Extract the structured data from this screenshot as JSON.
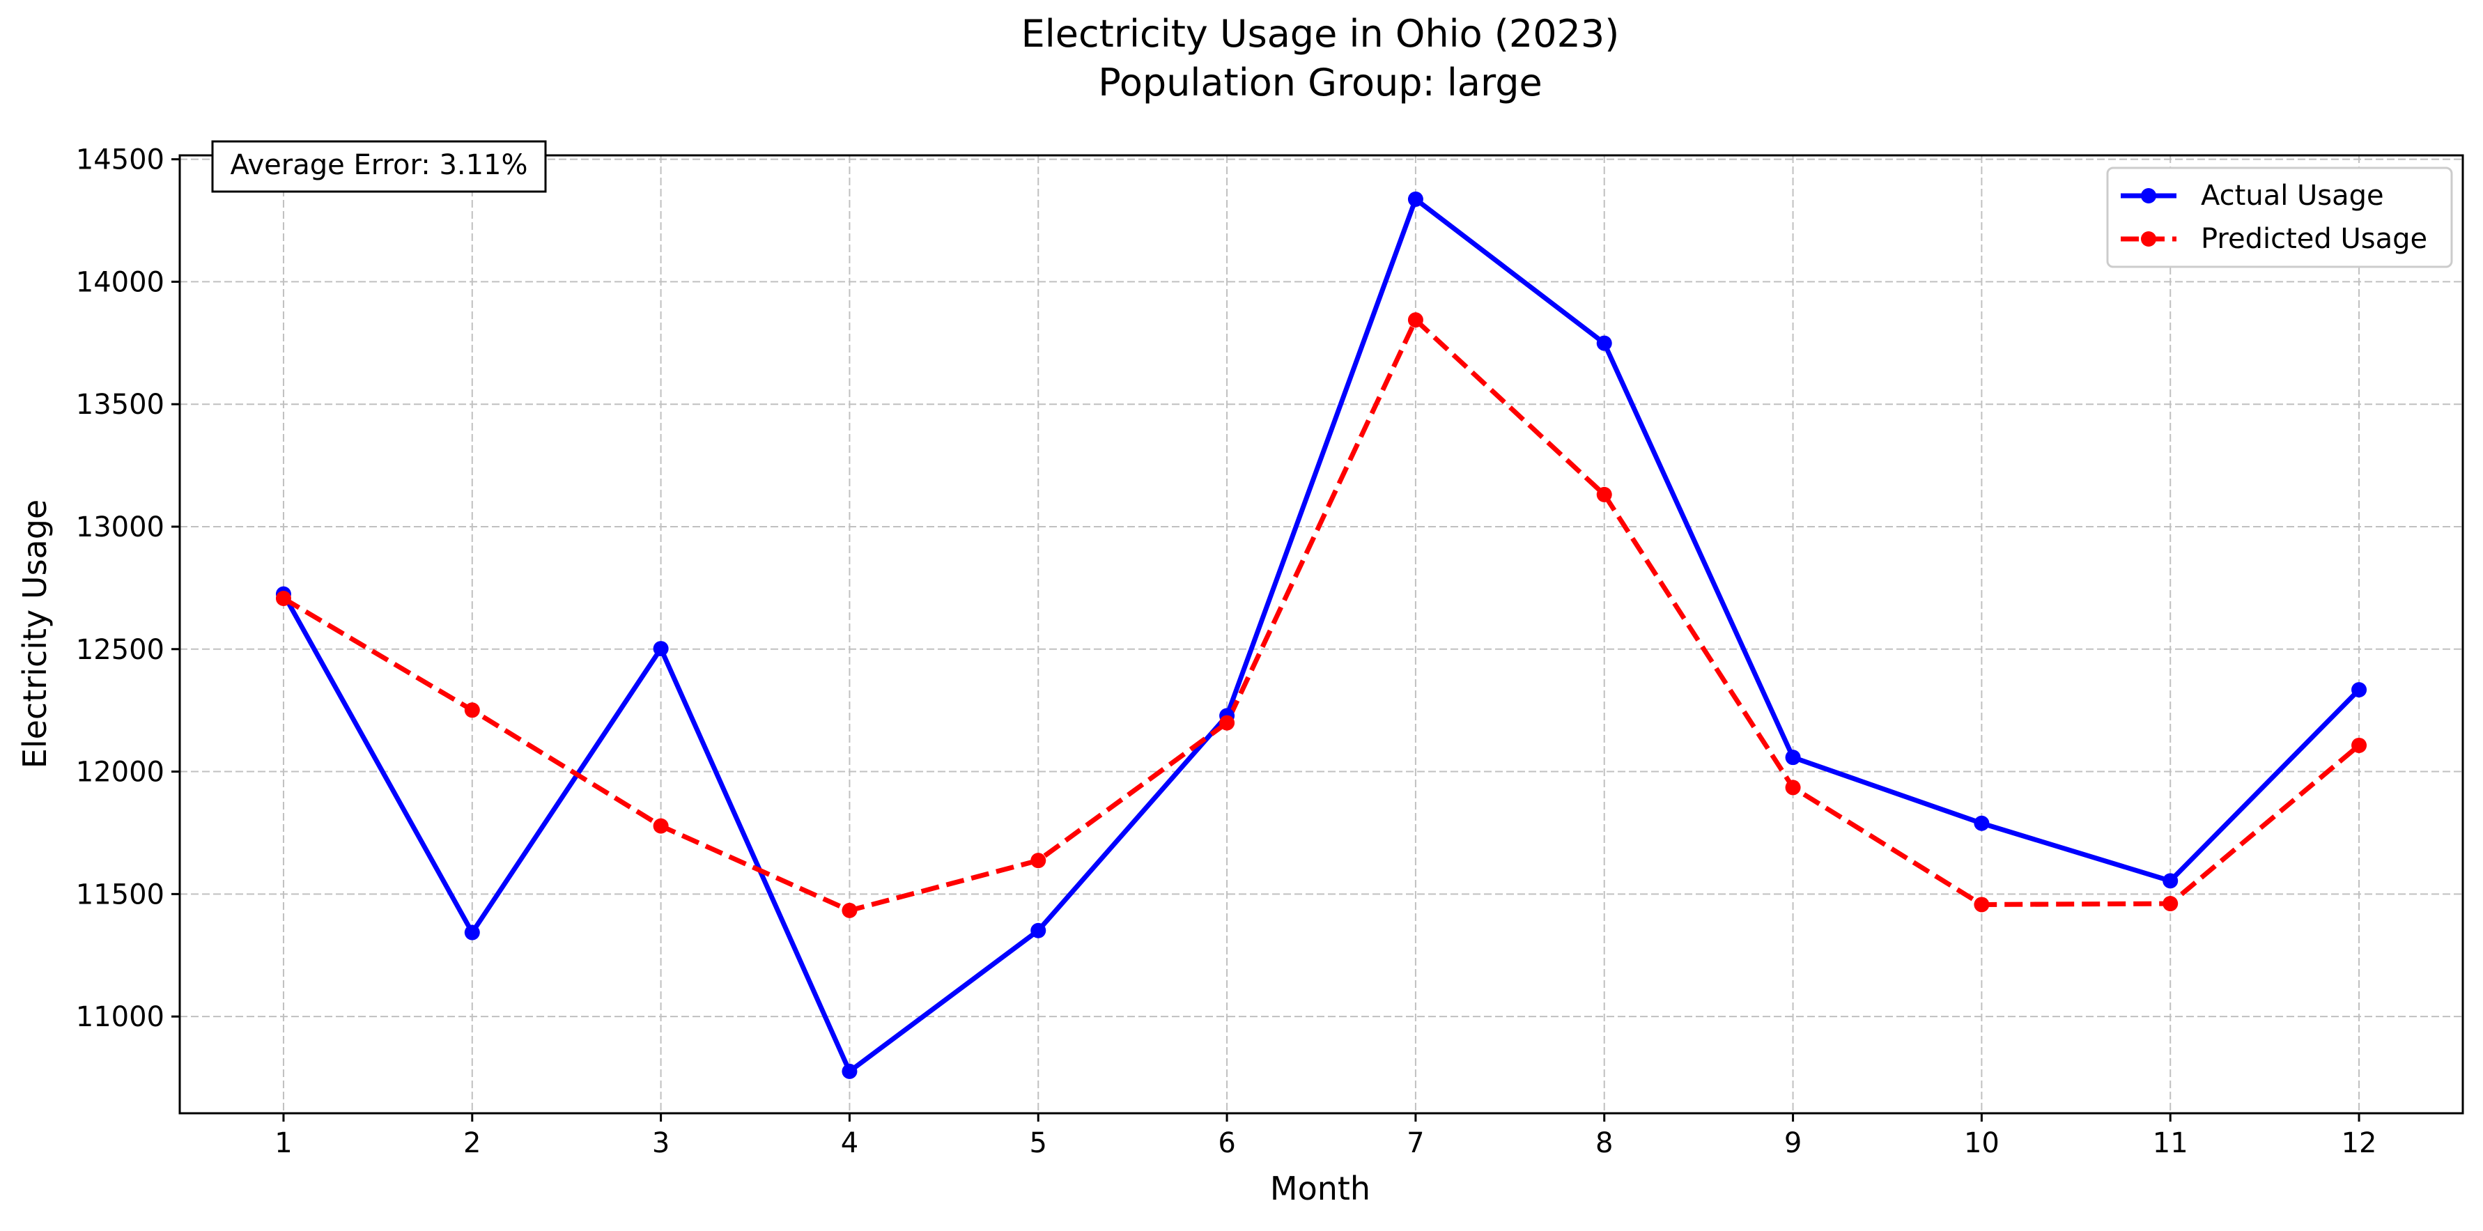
{
  "chart_data": {
    "type": "line",
    "title": "Electricity Usage in Ohio (2023)",
    "subtitle": "Population Group: large",
    "xlabel": "Month",
    "ylabel": "Electricity Usage",
    "x": [
      1,
      2,
      3,
      4,
      5,
      6,
      7,
      8,
      9,
      10,
      11,
      12
    ],
    "xlim": [
      0.45,
      12.55
    ],
    "ylim": [
      10605,
      14516
    ],
    "yticks": [
      11000,
      11500,
      12000,
      12500,
      13000,
      13500,
      14000,
      14500
    ],
    "grid": true,
    "legend_position": "top-right",
    "annotation": "Average Error: 3.11%",
    "series": [
      {
        "name": "Actual Usage",
        "color": "#0000ff",
        "style": "solid",
        "values": [
          12725,
          11343,
          12502,
          10776,
          11351,
          12228,
          14337,
          13749,
          12058,
          11789,
          11554,
          12334
        ]
      },
      {
        "name": "Predicted Usage",
        "color": "#ff0000",
        "style": "dashed",
        "values": [
          12707,
          12251,
          11778,
          11433,
          11637,
          12199,
          13844,
          13131,
          11935,
          11457,
          11461,
          12107
        ]
      }
    ]
  }
}
